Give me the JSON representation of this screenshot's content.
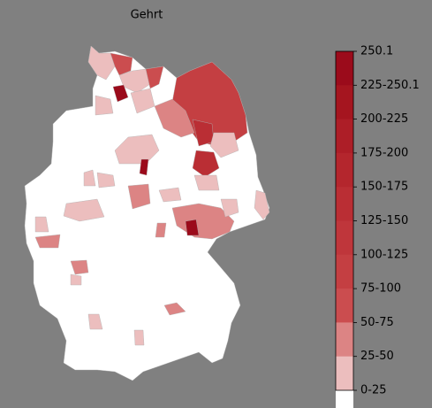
{
  "title": "Gehrt",
  "colorbar": {
    "labels": [
      "250.1",
      "225-250.1",
      "200-225",
      "175-200",
      "150-175",
      "125-150",
      "100-125",
      "75-100",
      "50-75",
      "25-50",
      "0-25"
    ],
    "colors": [
      "#9b0b1b",
      "#a5151f",
      "#ad1e27",
      "#b4262d",
      "#ba2e34",
      "#bf363b",
      "#c43f42",
      "#cb4d4f",
      "#dc8484",
      "#ecbebe",
      "#ffffff"
    ]
  }
}
